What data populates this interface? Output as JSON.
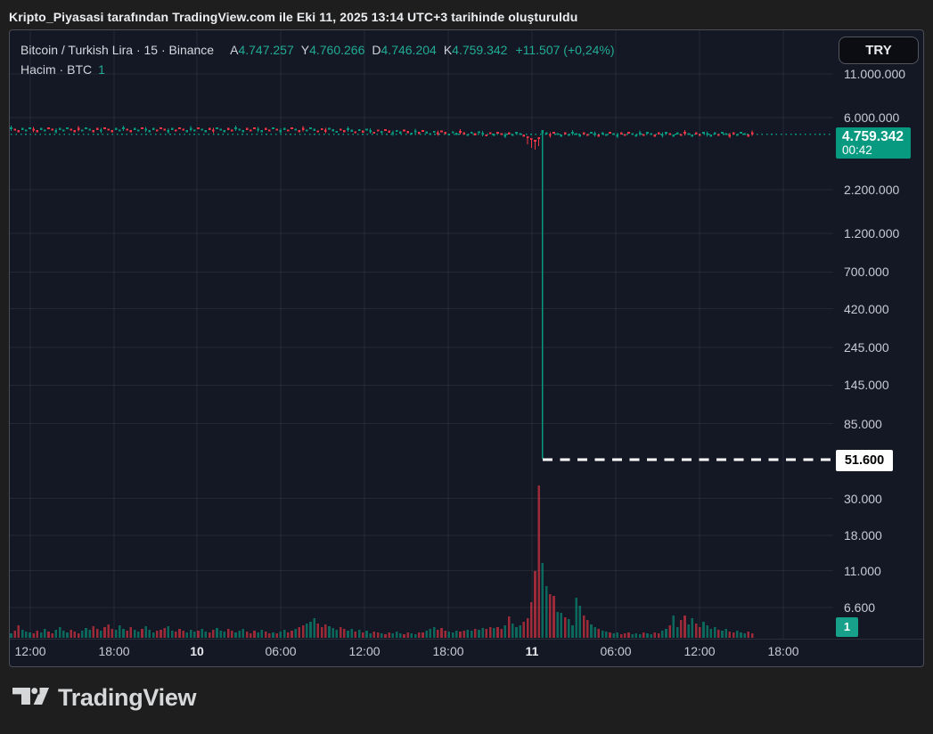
{
  "attribution": "Kripto_Piyasasi tarafından TradingView.com ile Eki 11, 2025 13:14 UTC+3 tarihinde oluşturuldu",
  "legend": {
    "title": "Bitcoin / Turkish Lira · 15 · Binance",
    "ohlc": [
      {
        "k": "A",
        "v": "4.747.257"
      },
      {
        "k": "Y",
        "v": "4.760.266"
      },
      {
        "k": "D",
        "v": "4.746.204"
      },
      {
        "k": "K",
        "v": "4.759.342"
      }
    ],
    "change": "+11.507 (+0,24%)",
    "volume_label": "Hacim · BTC",
    "volume_value": "1"
  },
  "axis": {
    "currency": "TRY",
    "last_price": "4.759.342",
    "countdown": "00:42",
    "crash_label": "51.600",
    "volume_tag": "1"
  },
  "footer": {
    "brand": "TradingView"
  },
  "colors": {
    "up": "#089981",
    "down": "#f23645",
    "vol_up": "rgba(8,153,129,0.62)",
    "vol_down": "rgba(242,54,69,0.62)",
    "grid": "rgba(255,255,255,0.07)",
    "separator": "#2a2e39",
    "dashed_level": "#ffffff",
    "tag_green": "#089981",
    "axis_text": "#c8cbd4",
    "chart_bg": "#141824",
    "page_bg": "#1e1e1e"
  },
  "chart_data": {
    "type": "candlestick",
    "symbol": "Bitcoin / Turkish Lira",
    "exchange": "Binance",
    "interval": "15",
    "scale": "log",
    "legend_note": "flash crash on Oct 11 from ~4.76M TRY down to 51.600 TRY",
    "ohlc": {
      "open": 4747257,
      "high": 4760266,
      "low": 4746204,
      "close": 4759342
    },
    "change": 11507,
    "change_pct": 0.24,
    "crash_low": 51600,
    "countdown": "00:42",
    "price_axis": {
      "ticks": [
        {
          "label": "11.000.000",
          "value": 11000000
        },
        {
          "label": "6.000.000",
          "value": 6000000
        },
        {
          "label": "2.200.000",
          "value": 2200000
        },
        {
          "label": "1.200.000",
          "value": 1200000
        },
        {
          "label": "700.000",
          "value": 700000
        },
        {
          "label": "420.000",
          "value": 420000
        },
        {
          "label": "245.000",
          "value": 245000
        },
        {
          "label": "145.000",
          "value": 145000
        },
        {
          "label": "85.000",
          "value": 85000
        },
        {
          "label": "30.000",
          "value": 30000
        },
        {
          "label": "18.000",
          "value": 18000
        },
        {
          "label": "11.000",
          "value": 11000
        },
        {
          "label": "6.600",
          "value": 6600
        }
      ]
    },
    "time_axis": {
      "labels": [
        {
          "label": "12:00"
        },
        {
          "label": "18:00"
        },
        {
          "label": "10",
          "major": true
        },
        {
          "label": "06:00"
        },
        {
          "label": "12:00"
        },
        {
          "label": "18:00"
        },
        {
          "label": "11",
          "major": true
        },
        {
          "label": "06:00"
        },
        {
          "label": "12:00"
        },
        {
          "label": "18:00"
        }
      ]
    },
    "candles": {
      "colors": "grrgggrrggrrggggrrrgggrrgrrrgggrrggrgggrrrggrrrgggrggrrgggrrgggrrrggrrgrggrrgrrgggrrrgggrrggrgrggrrgrrgggrrggrrgggrrrgggrrggrggrrgrrgrgggrrrrrggrrggrggggrrggrggrggrrrgggrggrrggrggrrggrrggggrggrrgggrr",
      "crash_index": 142,
      "dip_indices": [
        138,
        139,
        140,
        141
      ]
    },
    "volume": {
      "unit": "BTC",
      "heights": "5 8 14 9 7 6 5 8 6 10 7 5 9 12 8 6 9 7 5 8 11 9 13 10 8 12 15 10 9 14 10 8 12 9 7 10 13 9 6 8 9 11 13 8 7 10 8 6 9 7 8 10 7 6 9 11 8 7 10 8 6 8 10 7 5 8 6 9 7 5 6 5 7 9 6 8 10 12 14 16 18 22 16 12 15 13 11 9 12 10 8 10 7 9 6 8 5 7 6 5 4 6 5 7 5 4 6 5 4 6 6 8 10 12 9 11 8 7 6 8 7 8 9 8 10 9 11 10 12 11 12 10 14 24 16 12 14 18 22 40 75 171 84 58 49 47 29 28 23 21 14 45 36 25 20 15 12 10 8 7 6 5 6 4 5 6 4 5 4 6 5 4 6 5 8 10 14 25 12 20 25 15 22 16 12 18 14 10 12 9 8 10 7 6 8 6 5 7 5"
    }
  }
}
